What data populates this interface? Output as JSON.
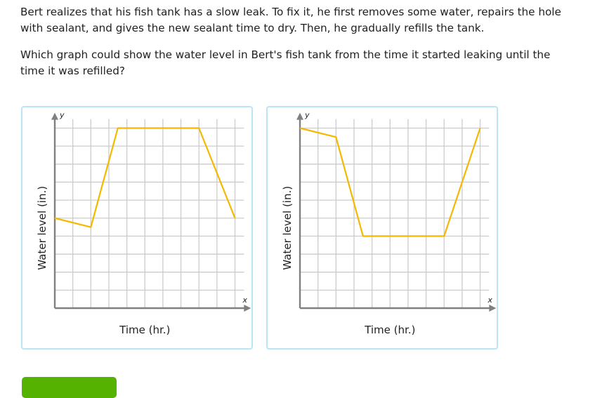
{
  "question": {
    "paragraph_1": "Bert realizes that his fish tank has a slow leak. To fix it, he first removes some water, repairs the hole with sealant, and gives the new sealant time to dry. Then, he gradually refills the tank.",
    "paragraph_2": "Which graph could show the water level in Bert's fish tank from the time it started leaking until the time it was refilled?"
  },
  "colors": {
    "line": "#f5b800",
    "grid": "#cccccc",
    "axis": "#808080",
    "card_border": "#b9e6f7",
    "button": "#56b200"
  },
  "chart_data": [
    {
      "type": "line",
      "title": "",
      "xlabel": "Time (hr.)",
      "ylabel": "Water level (in.)",
      "x_axis_letter": "x",
      "y_axis_letter": "y",
      "xlim": [
        0,
        10.5
      ],
      "ylim": [
        0,
        10.5
      ],
      "grid": true,
      "tick_labels": false,
      "x": [
        0,
        2,
        3.5,
        8,
        10
      ],
      "y": [
        5,
        4.5,
        10,
        10,
        5
      ]
    },
    {
      "type": "line",
      "title": "",
      "xlabel": "Time (hr.)",
      "ylabel": "Water level (in.)",
      "x_axis_letter": "x",
      "y_axis_letter": "y",
      "xlim": [
        0,
        10.5
      ],
      "ylim": [
        0,
        10.5
      ],
      "grid": true,
      "tick_labels": false,
      "x": [
        0,
        2,
        3.5,
        8,
        10
      ],
      "y": [
        10,
        9.5,
        4,
        4,
        10
      ]
    }
  ],
  "graphs": [
    {
      "xlabel": "Time (hr.)",
      "ylabel": "Water level (in.)",
      "x_letter": "x",
      "y_letter": "y"
    },
    {
      "xlabel": "Time (hr.)",
      "ylabel": "Water level (in.)",
      "x_letter": "x",
      "y_letter": "y"
    }
  ]
}
